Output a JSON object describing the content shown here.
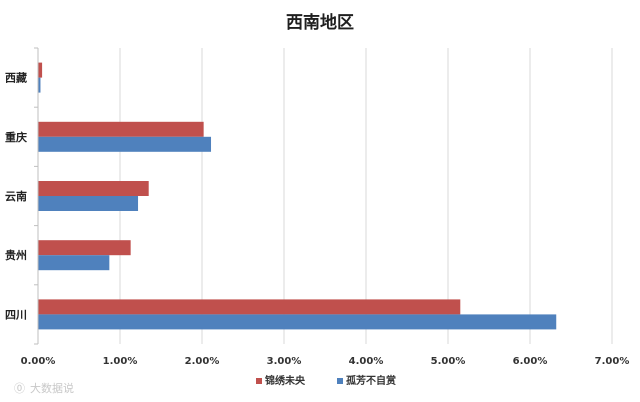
{
  "chart_data": {
    "type": "bar",
    "orientation": "horizontal",
    "title": "西南地区",
    "categories": [
      "西藏",
      "重庆",
      "云南",
      "贵州",
      "四川"
    ],
    "series": [
      {
        "name": "锦绣未央",
        "color": "#c0504d",
        "values": [
          0.0005,
          0.0202,
          0.0135,
          0.0113,
          0.0515
        ]
      },
      {
        "name": "孤芳不自赏",
        "color": "#4f81bd",
        "values": [
          0.0003,
          0.0211,
          0.0122,
          0.0087,
          0.0632
        ]
      }
    ],
    "xlim": [
      0,
      0.07
    ],
    "x_ticks": [
      "0.00%",
      "1.00%",
      "2.00%",
      "3.00%",
      "4.00%",
      "5.00%",
      "6.00%",
      "7.00%"
    ],
    "grid": true,
    "legend_position": "bottom"
  },
  "watermark": {
    "text": "大数据说",
    "glyph": "⓪"
  }
}
